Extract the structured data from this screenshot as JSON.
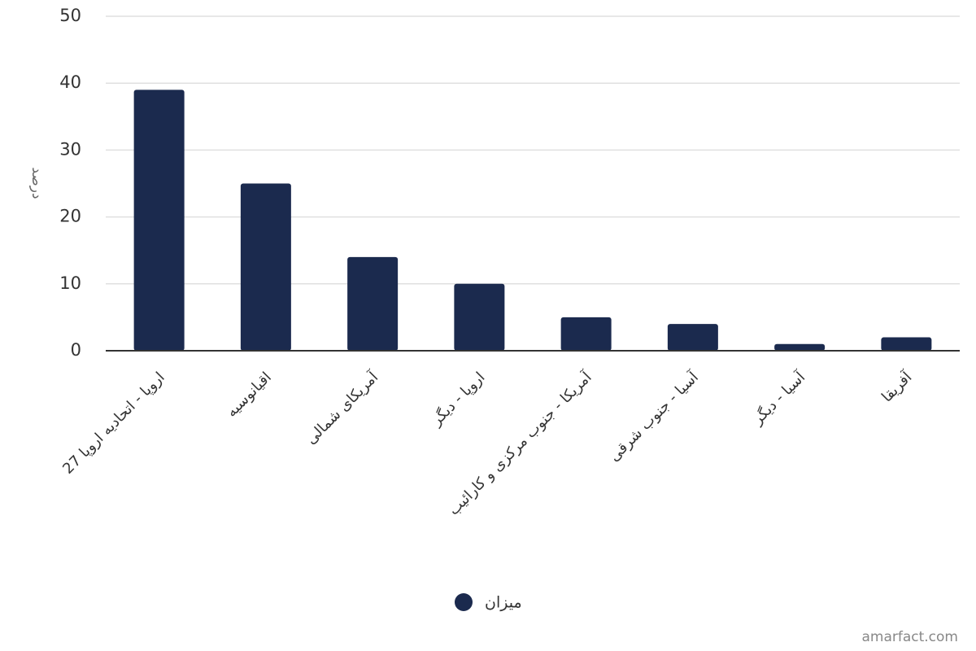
{
  "chart_data": {
    "type": "bar",
    "y_label": "درصد",
    "categories": [
      "اروپا - اتحادیه اروپا 27",
      "اقیانوسیه",
      "آمریکای شمالی",
      "اروپا - دیگر",
      "آمریکا - جنوب مرکزی و کارائیب",
      "آسیا - جنوب شرقی",
      "آسیا - دیگر",
      "آفریقا"
    ],
    "series": [
      {
        "name": "میزان",
        "color": "#1b2a4e",
        "values": [
          39,
          25,
          14,
          10,
          5,
          4,
          1,
          2
        ]
      }
    ],
    "ylim": [
      0,
      50
    ],
    "yticks": [
      0,
      10,
      20,
      30,
      40,
      50
    ],
    "grid": true,
    "source": "amarfact.com"
  }
}
